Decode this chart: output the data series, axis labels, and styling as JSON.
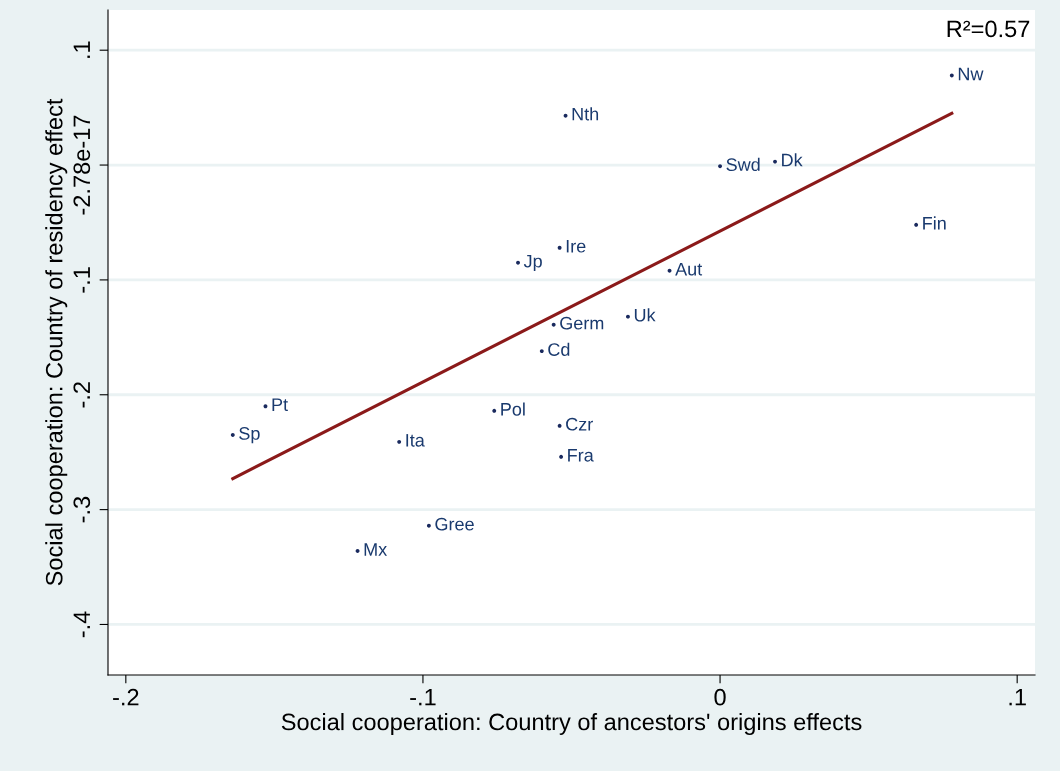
{
  "chart_data": {
    "type": "scatter",
    "xlabel": "Social cooperation: Country of ancestors' origins effects",
    "ylabel": "Social cooperation: Country of residency effect",
    "xlim": [
      -0.206,
      0.106
    ],
    "ylim": [
      -0.444,
      0.135
    ],
    "xticks": [
      {
        "value": -0.2,
        "label": "-.2"
      },
      {
        "value": -0.1,
        "label": "-.1"
      },
      0,
      {
        "value": 0.1,
        "label": ".1"
      }
    ],
    "yticks": [
      {
        "value": -0.4,
        "label": "-.4"
      },
      {
        "value": -0.3,
        "label": "-.3"
      },
      {
        "value": -0.2,
        "label": "-.2"
      },
      {
        "value": -0.1,
        "label": "-.1"
      },
      {
        "value": 0,
        "label": "-2.78e-17"
      },
      {
        "value": 0.1,
        "label": ".1"
      }
    ],
    "grid": "y",
    "series": [
      {
        "marker": "circle",
        "color": "#1a2a5e",
        "x": [
          0.078,
          -0.052,
          0.0,
          0.0185,
          0.066,
          -0.054,
          -0.068,
          -0.017,
          -0.031,
          -0.056,
          -0.06,
          -0.153,
          -0.076,
          -0.164,
          -0.054,
          -0.108,
          -0.0535,
          -0.098,
          -0.122
        ],
        "values": [
          0.078,
          0.043,
          -0.001,
          0.003,
          -0.052,
          -0.072,
          -0.085,
          -0.092,
          -0.132,
          -0.139,
          -0.162,
          -0.21,
          -0.214,
          -0.235,
          -0.227,
          -0.241,
          -0.254,
          -0.314,
          -0.336
        ]
      },
      {
        "type": "line",
        "color": "#8b1a1a",
        "x": [
          -0.164,
          0.078
        ],
        "values": [
          -0.273,
          0.045
        ]
      }
    ],
    "annotations": [
      {
        "text": "Nw",
        "x": 0.078,
        "y": 0.078
      },
      {
        "text": "Nth",
        "x": -0.052,
        "y": 0.043
      },
      {
        "text": "Swd",
        "x": 0.0,
        "y": -0.001
      },
      {
        "text": "Dk",
        "x": 0.0185,
        "y": 0.003
      },
      {
        "text": "Fin",
        "x": 0.066,
        "y": -0.052
      },
      {
        "text": "Ire",
        "x": -0.054,
        "y": -0.072
      },
      {
        "text": "Jp",
        "x": -0.068,
        "y": -0.085
      },
      {
        "text": "Aut",
        "x": -0.017,
        "y": -0.092
      },
      {
        "text": "Uk",
        "x": -0.031,
        "y": -0.132
      },
      {
        "text": "Germ",
        "x": -0.056,
        "y": -0.139
      },
      {
        "text": "Cd",
        "x": -0.06,
        "y": -0.162
      },
      {
        "text": "Pt",
        "x": -0.153,
        "y": -0.21
      },
      {
        "text": "Pol",
        "x": -0.076,
        "y": -0.214
      },
      {
        "text": "Sp",
        "x": -0.164,
        "y": -0.235
      },
      {
        "text": "Czr",
        "x": -0.054,
        "y": -0.227
      },
      {
        "text": "Ita",
        "x": -0.108,
        "y": -0.241
      },
      {
        "text": "Fra",
        "x": -0.0535,
        "y": -0.254
      },
      {
        "text": "Gree",
        "x": -0.098,
        "y": -0.314
      },
      {
        "text": "Mx",
        "x": -0.122,
        "y": -0.336
      },
      "R²=0.57"
    ]
  }
}
